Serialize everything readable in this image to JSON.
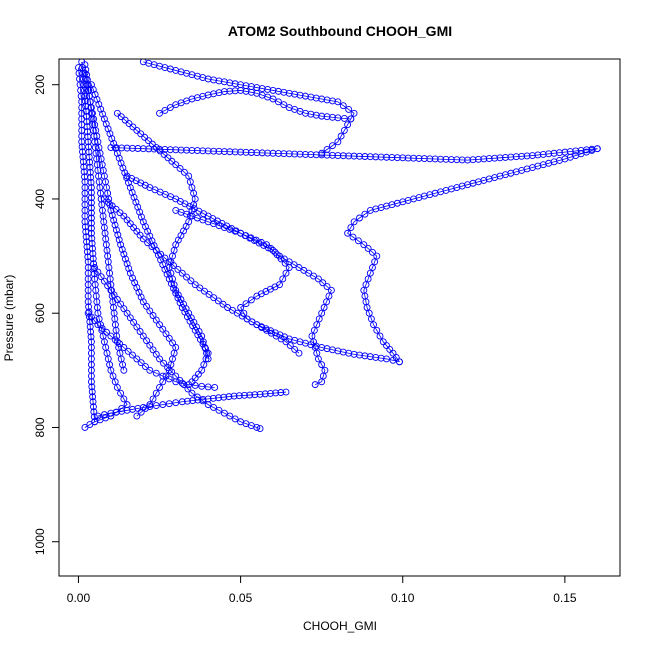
{
  "chart_data": {
    "type": "scatter",
    "title": "ATOM2 Southbound CHOOH_GMI",
    "xlabel": "CHOOH_GMI",
    "ylabel": "Pressure (mbar)",
    "xlim": [
      -0.006,
      0.167
    ],
    "ylim": [
      1060,
      155
    ],
    "y_reversed": true,
    "grid": false,
    "legend": "none",
    "x_ticks": [
      0.0,
      0.05,
      0.1,
      0.15
    ],
    "x_tick_labels": [
      "0.00",
      "0.05",
      "0.10",
      "0.15"
    ],
    "y_ticks": [
      200,
      400,
      600,
      800,
      1000
    ],
    "y_tick_labels": [
      "200",
      "400",
      "600",
      "800",
      "1000"
    ],
    "marker": "open-circle",
    "color": "#0000ff",
    "series": [
      {
        "x": [
          0.001,
          0.002,
          0.003,
          0.004,
          0.004,
          0.005,
          0.006,
          0.008,
          0.01,
          0.012,
          0.015,
          0.01,
          0.005,
          0.002
        ],
        "y": [
          160,
          220,
          300,
          380,
          460,
          540,
          600,
          650,
          700,
          730,
          760,
          780,
          790,
          800
        ]
      },
      {
        "x": [
          0.002,
          0.004,
          0.006,
          0.008,
          0.01,
          0.013,
          0.016,
          0.02,
          0.025,
          0.03,
          0.028,
          0.025,
          0.022,
          0.018
        ],
        "y": [
          180,
          240,
          300,
          360,
          420,
          480,
          530,
          580,
          620,
          660,
          700,
          730,
          760,
          780
        ]
      },
      {
        "x": [
          0.004,
          0.008,
          0.012,
          0.016,
          0.02,
          0.024,
          0.028,
          0.032,
          0.036,
          0.04,
          0.038,
          0.035
        ],
        "y": [
          200,
          260,
          320,
          380,
          440,
          490,
          540,
          590,
          630,
          670,
          700,
          720
        ]
      },
      {
        "x": [
          0.02,
          0.03,
          0.04,
          0.05,
          0.06,
          0.07,
          0.08,
          0.085,
          0.083,
          0.08,
          0.075
        ],
        "y": [
          160,
          175,
          190,
          200,
          210,
          220,
          230,
          250,
          270,
          300,
          320
        ]
      },
      {
        "x": [
          0.01,
          0.02,
          0.03,
          0.04,
          0.05,
          0.06,
          0.07,
          0.08,
          0.09,
          0.1,
          0.11,
          0.12,
          0.13,
          0.14,
          0.15,
          0.16
        ],
        "y": [
          310,
          312,
          314,
          316,
          318,
          320,
          322,
          324,
          326,
          328,
          330,
          332,
          328,
          324,
          318,
          312
        ]
      },
      {
        "x": [
          0.16,
          0.15,
          0.14,
          0.13,
          0.12,
          0.11,
          0.1,
          0.09,
          0.085,
          0.083,
          0.088,
          0.092,
          0.09,
          0.088,
          0.089,
          0.091,
          0.094,
          0.097,
          0.099
        ],
        "y": [
          312,
          330,
          345,
          360,
          375,
          390,
          405,
          420,
          440,
          460,
          480,
          500,
          530,
          560,
          590,
          620,
          650,
          670,
          685
        ]
      },
      {
        "x": [
          0.03,
          0.04,
          0.05,
          0.058,
          0.062,
          0.068,
          0.074,
          0.078,
          0.075,
          0.072,
          0.074,
          0.076,
          0.075,
          0.073
        ],
        "y": [
          420,
          440,
          460,
          480,
          500,
          520,
          540,
          560,
          600,
          640,
          680,
          700,
          720,
          725
        ]
      },
      {
        "x": [
          0.008,
          0.014,
          0.02,
          0.028,
          0.036,
          0.046,
          0.055,
          0.065,
          0.075,
          0.085,
          0.095,
          0.099
        ],
        "y": [
          400,
          430,
          470,
          510,
          550,
          590,
          620,
          645,
          660,
          672,
          680,
          685
        ]
      },
      {
        "x": [
          0.005,
          0.01,
          0.015,
          0.02,
          0.025,
          0.03,
          0.035,
          0.04,
          0.045,
          0.05,
          0.055,
          0.056
        ],
        "y": [
          520,
          560,
          600,
          640,
          680,
          710,
          740,
          760,
          775,
          790,
          800,
          802
        ]
      },
      {
        "x": [
          0.006,
          0.01,
          0.015,
          0.02,
          0.026,
          0.032,
          0.04,
          0.048,
          0.056,
          0.064
        ],
        "y": [
          780,
          775,
          770,
          765,
          760,
          755,
          750,
          745,
          742,
          738
        ]
      },
      {
        "x": [
          0.003,
          0.006,
          0.01,
          0.014,
          0.018,
          0.022,
          0.026,
          0.03,
          0.034,
          0.038,
          0.042
        ],
        "y": [
          600,
          620,
          640,
          660,
          680,
          700,
          710,
          720,
          725,
          728,
          730
        ]
      },
      {
        "x": [
          0.012,
          0.018,
          0.024,
          0.03,
          0.034,
          0.036,
          0.034,
          0.03,
          0.028,
          0.03,
          0.034,
          0.038,
          0.04
        ],
        "y": [
          250,
          280,
          310,
          340,
          360,
          400,
          440,
          480,
          520,
          560,
          600,
          640,
          680
        ]
      },
      {
        "x": [
          0.025,
          0.03,
          0.035,
          0.04,
          0.045,
          0.05,
          0.055,
          0.06,
          0.065,
          0.07,
          0.075,
          0.08,
          0.084
        ],
        "y": [
          250,
          235,
          225,
          218,
          212,
          210,
          215,
          225,
          240,
          250,
          255,
          258,
          260
        ]
      },
      {
        "x": [
          0.015,
          0.022,
          0.03,
          0.04,
          0.05,
          0.06,
          0.065,
          0.062,
          0.055,
          0.05,
          0.052,
          0.058,
          0.064,
          0.068
        ],
        "y": [
          360,
          380,
          400,
          430,
          460,
          490,
          520,
          550,
          570,
          590,
          610,
          630,
          650,
          670
        ]
      },
      {
        "x": [
          0.002,
          0.003,
          0.004,
          0.005,
          0.006,
          0.007,
          0.008,
          0.009,
          0.01,
          0.011,
          0.012,
          0.014
        ],
        "y": [
          165,
          200,
          250,
          300,
          350,
          400,
          450,
          500,
          550,
          600,
          650,
          700
        ]
      },
      {
        "x": [
          0.0,
          0.001,
          0.001,
          0.002,
          0.002,
          0.003,
          0.003,
          0.004,
          0.004,
          0.005
        ],
        "y": [
          170,
          230,
          300,
          370,
          440,
          510,
          580,
          650,
          720,
          790
        ]
      }
    ]
  }
}
